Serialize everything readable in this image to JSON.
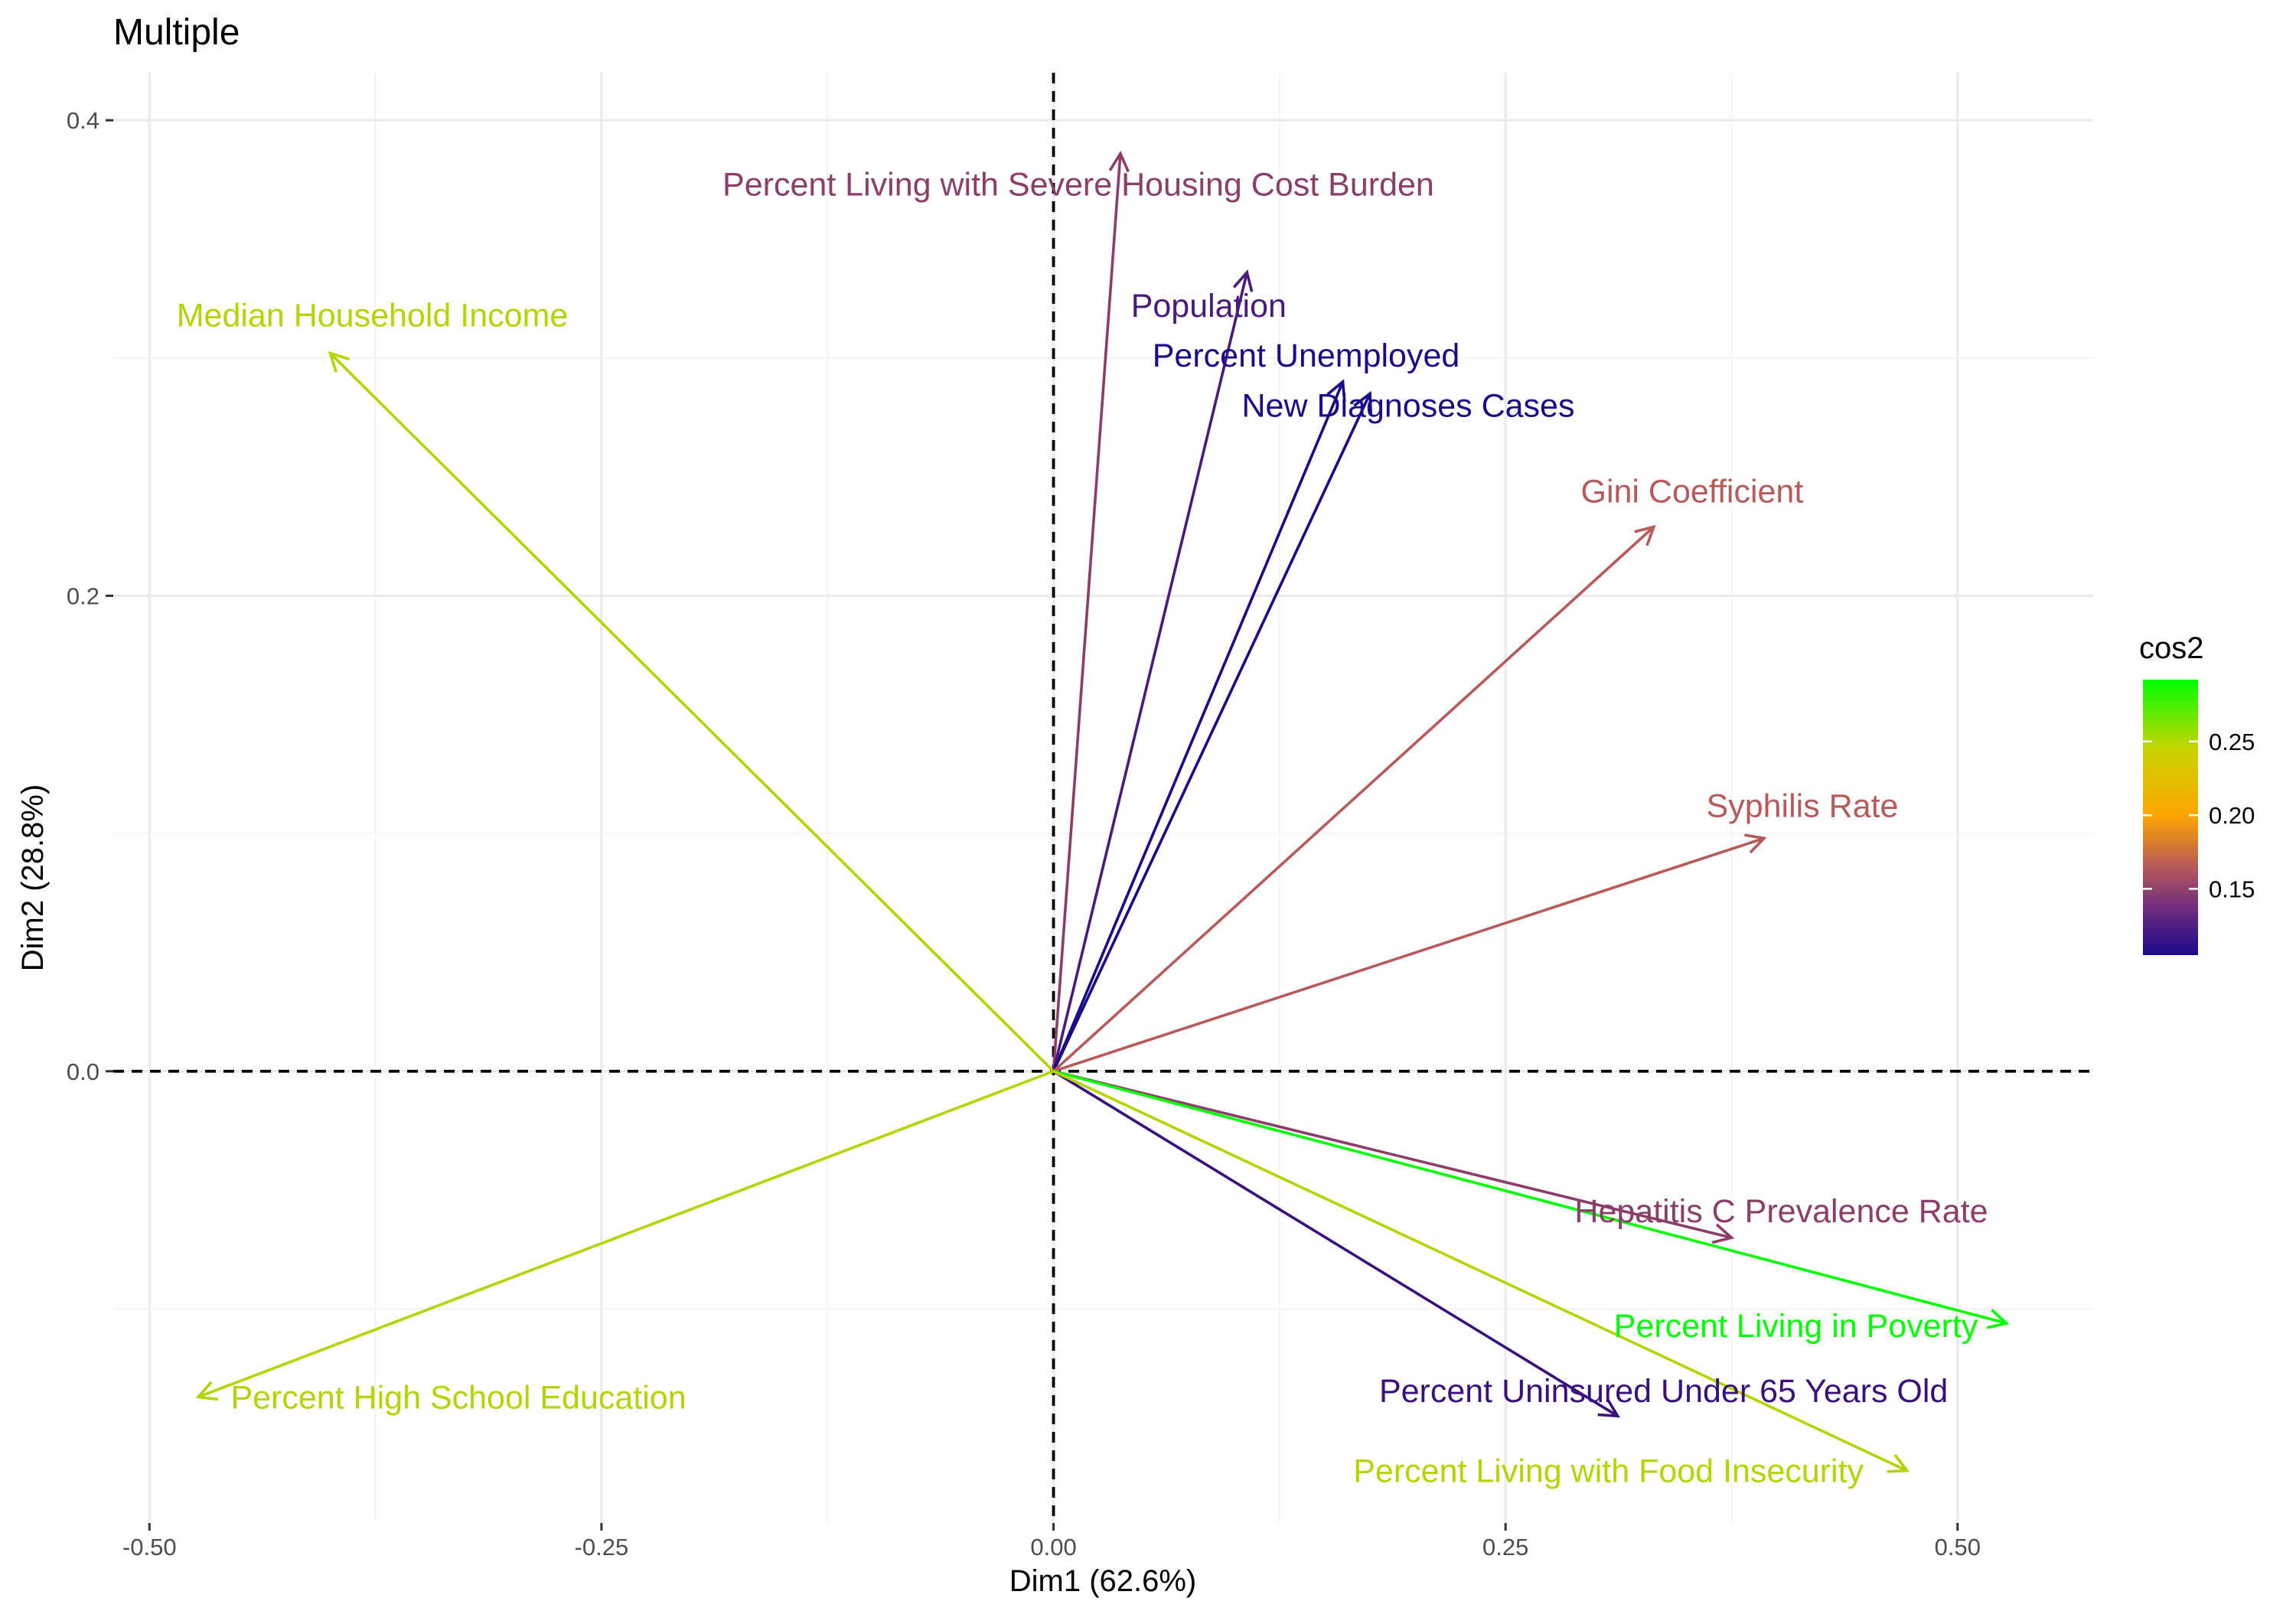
{
  "chart_data": {
    "type": "pca-variable-biplot",
    "title": "Multiple",
    "xlabel": "Dim1 (62.6%)",
    "ylabel": "Dim2 (28.8%)",
    "xlim": [
      -0.52,
      0.575
    ],
    "ylim": [
      -0.19,
      0.42
    ],
    "x_ticks": [
      -0.5,
      -0.25,
      0.0,
      0.25,
      0.5
    ],
    "x_tick_labels": [
      "-0.50",
      "-0.25",
      "0.00",
      "0.25",
      "0.50"
    ],
    "y_ticks": [
      0.0,
      0.2,
      0.4
    ],
    "y_tick_labels": [
      "0.0",
      "0.2",
      "0.4"
    ],
    "grid": true,
    "reference_lines": {
      "x": 0,
      "y": 0,
      "style": "dashed"
    },
    "color_scale": {
      "title": "cos2",
      "min": 0.105,
      "max": 0.292,
      "ticks": [
        0.15,
        0.2,
        0.25
      ],
      "tick_labels": [
        "0.15",
        "0.20",
        "0.25"
      ],
      "stops": [
        {
          "value": 0.105,
          "color": "#1a0a8c"
        },
        {
          "value": 0.135,
          "color": "#6a2a7e"
        },
        {
          "value": 0.165,
          "color": "#b85a5a"
        },
        {
          "value": 0.2,
          "color": "#ffa500"
        },
        {
          "value": 0.245,
          "color": "#c8d400"
        },
        {
          "value": 0.292,
          "color": "#00ff00"
        }
      ],
      "legend_position": "right"
    },
    "variables": [
      {
        "name": "Percent Living with Severe Housing Cost Burden",
        "x": 0.037,
        "y": 0.386,
        "cos2": 0.155,
        "color": "#8c3d6a"
      },
      {
        "name": "Population",
        "x": 0.107,
        "y": 0.336,
        "cos2": 0.125,
        "color": "#4a1a80"
      },
      {
        "name": "Percent Unemployed",
        "x": 0.16,
        "y": 0.29,
        "cos2": 0.108,
        "color": "#1a0a8c"
      },
      {
        "name": "New Diagnoses Cases",
        "x": 0.175,
        "y": 0.285,
        "cos2": 0.108,
        "color": "#1a0a8c"
      },
      {
        "name": "Median Household Income",
        "x": -0.4,
        "y": 0.302,
        "cos2": 0.26,
        "color": "#b5d400"
      },
      {
        "name": "Gini Coefficient",
        "x": 0.332,
        "y": 0.229,
        "cos2": 0.165,
        "color": "#b85a5a"
      },
      {
        "name": "Syphilis Rate",
        "x": 0.393,
        "y": 0.098,
        "cos2": 0.165,
        "color": "#b85a5a"
      },
      {
        "name": "Hepatitis C Prevalence Rate",
        "x": 0.375,
        "y": -0.07,
        "cos2": 0.14,
        "color": "#8c3d6a"
      },
      {
        "name": "Percent Living in Poverty",
        "x": 0.527,
        "y": -0.106,
        "cos2": 0.292,
        "color": "#00ff00"
      },
      {
        "name": "Percent Uninsured Under 65 Years Old",
        "x": 0.312,
        "y": -0.145,
        "cos2": 0.118,
        "color": "#3a1080"
      },
      {
        "name": "Percent Living with Food Insecurity",
        "x": 0.472,
        "y": -0.168,
        "cos2": 0.26,
        "color": "#b5d400"
      },
      {
        "name": "Percent High School Education",
        "x": -0.473,
        "y": -0.137,
        "cos2": 0.26,
        "color": "#b5d400"
      }
    ]
  }
}
